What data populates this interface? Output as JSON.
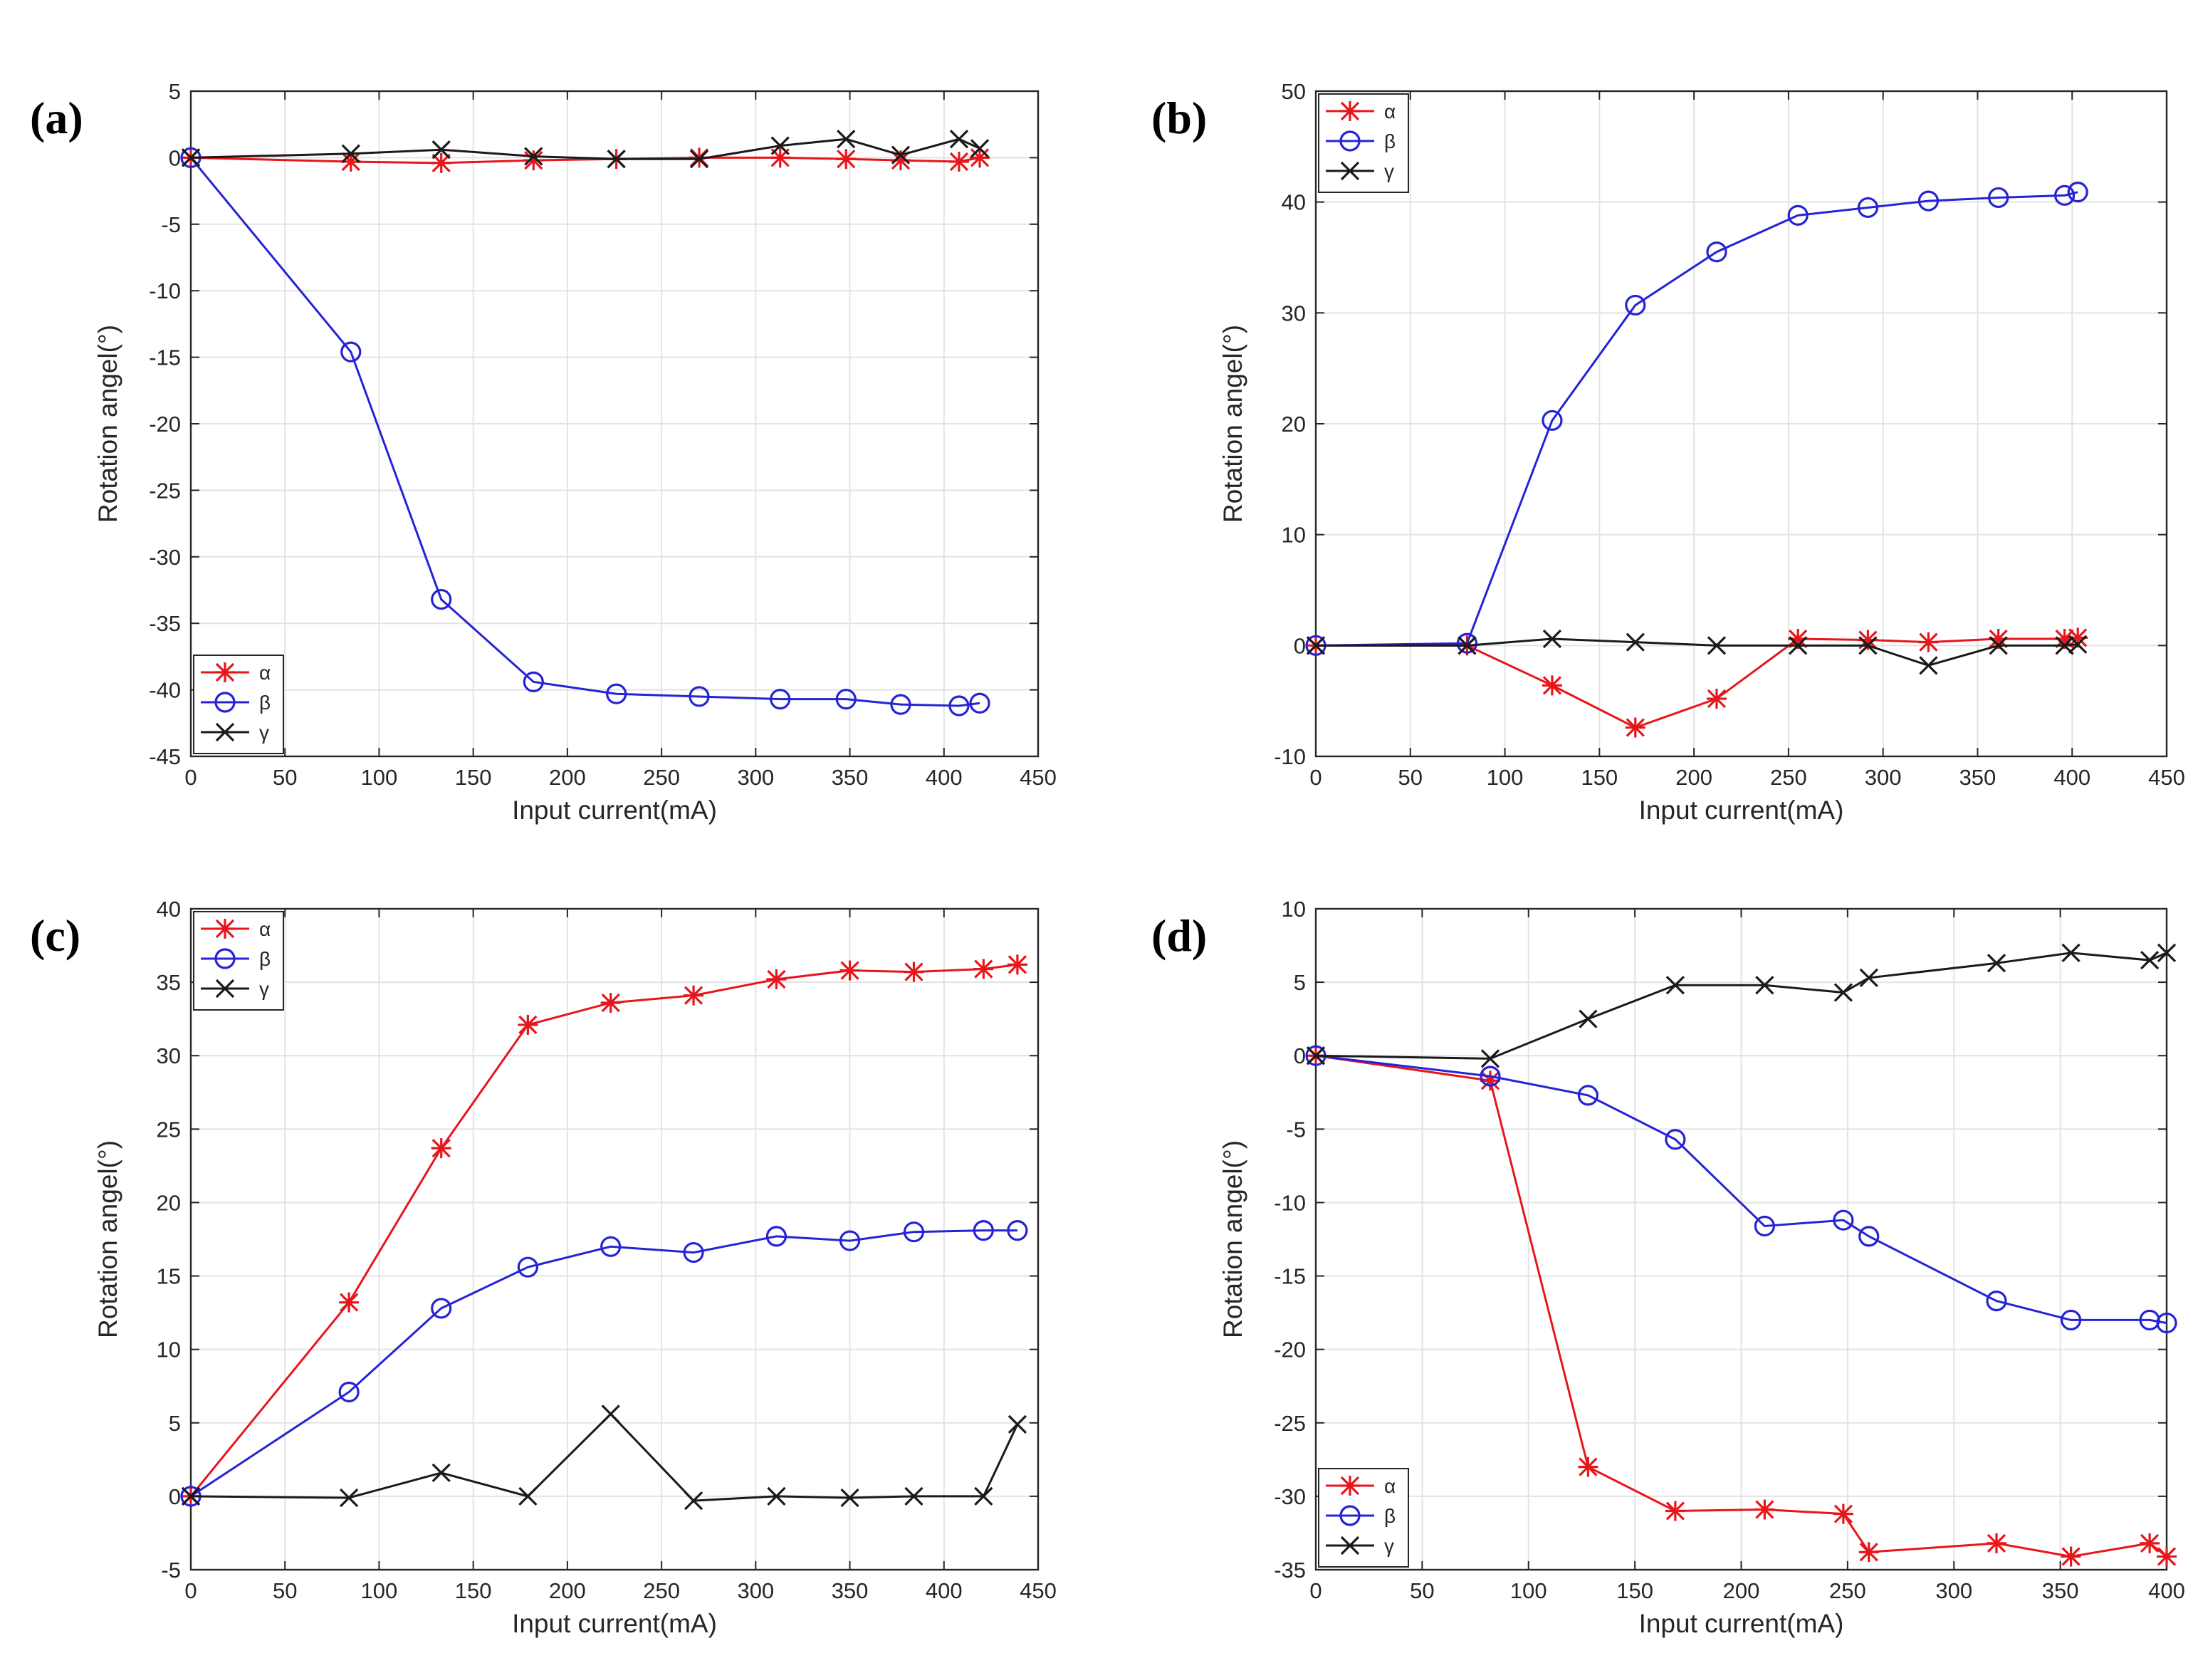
{
  "chart_data": [
    {
      "panel": "(a)",
      "type": "line",
      "xlabel": "Input current(mA)",
      "ylabel": "Rotation angel(°)",
      "xlim": [
        0,
        450
      ],
      "ylim": [
        -45,
        5
      ],
      "xticks": [
        0,
        50,
        100,
        150,
        200,
        250,
        300,
        350,
        400,
        450
      ],
      "yticks": [
        -45,
        -40,
        -35,
        -30,
        -25,
        -20,
        -15,
        -10,
        -5,
        0,
        5
      ],
      "grid": true,
      "legend_position": "bottom-left",
      "series": [
        {
          "name": "α",
          "color": "#e8151b",
          "marker": "star",
          "x": [
            0,
            85,
            133,
            182,
            226,
            270,
            313,
            348,
            377,
            408,
            419
          ],
          "y": [
            0,
            -0.3,
            -0.4,
            -0.2,
            -0.1,
            0,
            0,
            -0.1,
            -0.2,
            -0.3,
            0
          ]
        },
        {
          "name": "β",
          "color": "#2424d6",
          "marker": "circle",
          "x": [
            0,
            85,
            133,
            182,
            226,
            270,
            313,
            348,
            377,
            408,
            419
          ],
          "y": [
            0,
            -14.6,
            -33.2,
            -39.4,
            -40.3,
            -40.5,
            -40.7,
            -40.7,
            -41.1,
            -41.2,
            -41
          ]
        },
        {
          "name": "γ",
          "color": "#1a1a1a",
          "marker": "x",
          "x": [
            0,
            85,
            133,
            182,
            226,
            270,
            313,
            348,
            377,
            408,
            419
          ],
          "y": [
            0,
            0.3,
            0.6,
            0.1,
            -0.1,
            -0.1,
            0.9,
            1.4,
            0.2,
            1.4,
            0.7
          ]
        }
      ]
    },
    {
      "panel": "(b)",
      "type": "line",
      "xlabel": "Input current(mA)",
      "ylabel": "Rotation angel(°)",
      "xlim": [
        0,
        450
      ],
      "ylim": [
        -10,
        50
      ],
      "xticks": [
        0,
        50,
        100,
        150,
        200,
        250,
        300,
        350,
        400,
        450
      ],
      "yticks": [
        -10,
        0,
        10,
        20,
        30,
        40,
        50
      ],
      "grid": true,
      "legend_position": "top-left",
      "series": [
        {
          "name": "α",
          "color": "#e8151b",
          "marker": "star",
          "x": [
            0,
            80,
            125,
            169,
            212,
            255,
            292,
            324,
            361,
            396,
            403
          ],
          "y": [
            0,
            0,
            -3.6,
            -7.4,
            -4.8,
            0.6,
            0.5,
            0.3,
            0.6,
            0.6,
            0.7
          ]
        },
        {
          "name": "β",
          "color": "#2424d6",
          "marker": "circle",
          "x": [
            0,
            80,
            125,
            169,
            212,
            255,
            292,
            324,
            361,
            396,
            403
          ],
          "y": [
            0,
            0.2,
            20.3,
            30.7,
            35.5,
            38.8,
            39.5,
            40.1,
            40.4,
            40.6,
            40.9
          ]
        },
        {
          "name": "γ",
          "color": "#1a1a1a",
          "marker": "x",
          "x": [
            0,
            80,
            125,
            169,
            212,
            255,
            292,
            324,
            361,
            396,
            403
          ],
          "y": [
            0,
            0,
            0.6,
            0.3,
            0,
            0,
            0,
            -1.8,
            0,
            0,
            0.1
          ]
        }
      ]
    },
    {
      "panel": "(c)",
      "type": "line",
      "xlabel": "Input current(mA)",
      "ylabel": "Rotation angel(°)",
      "xlim": [
        0,
        450
      ],
      "ylim": [
        -5,
        40
      ],
      "xticks": [
        0,
        50,
        100,
        150,
        200,
        250,
        300,
        350,
        400,
        450
      ],
      "yticks": [
        -5,
        0,
        5,
        10,
        15,
        20,
        25,
        30,
        35,
        40
      ],
      "grid": true,
      "legend_position": "top-left",
      "series": [
        {
          "name": "α",
          "color": "#e8151b",
          "marker": "star",
          "x": [
            0,
            84,
            133,
            179,
            223,
            267,
            311,
            350,
            384,
            421,
            439
          ],
          "y": [
            0,
            13.2,
            23.7,
            32.1,
            33.6,
            34.1,
            35.2,
            35.8,
            35.7,
            35.9,
            36.2
          ]
        },
        {
          "name": "β",
          "color": "#2424d6",
          "marker": "circle",
          "x": [
            0,
            84,
            133,
            179,
            223,
            267,
            311,
            350,
            384,
            421,
            439
          ],
          "y": [
            0,
            7.1,
            12.8,
            15.6,
            17,
            16.6,
            17.7,
            17.4,
            18,
            18.1,
            18.1
          ]
        },
        {
          "name": "γ",
          "color": "#1a1a1a",
          "marker": "x",
          "x": [
            0,
            84,
            133,
            179,
            223,
            267,
            311,
            350,
            384,
            421,
            439
          ],
          "y": [
            0,
            -0.1,
            1.6,
            0,
            5.6,
            -0.3,
            0,
            -0.1,
            0,
            0,
            4.9
          ]
        }
      ]
    },
    {
      "panel": "(d)",
      "type": "line",
      "xlabel": "Input current(mA)",
      "ylabel": "Rotation angel(°)",
      "xlim": [
        0,
        400
      ],
      "ylim": [
        -35,
        10
      ],
      "xticks": [
        0,
        50,
        100,
        150,
        200,
        250,
        300,
        350,
        400
      ],
      "yticks": [
        -35,
        -30,
        -25,
        -20,
        -15,
        -10,
        -5,
        0,
        5,
        10
      ],
      "grid": true,
      "legend_position": "bottom-left",
      "series": [
        {
          "name": "α",
          "color": "#e8151b",
          "marker": "star",
          "x": [
            0,
            82,
            128,
            169,
            211,
            248,
            260,
            320,
            355,
            392,
            400
          ],
          "y": [
            0,
            -1.7,
            -28,
            -31,
            -30.9,
            -31.2,
            -33.8,
            -33.2,
            -34.1,
            -33.2,
            -34.1
          ]
        },
        {
          "name": "β",
          "color": "#2424d6",
          "marker": "circle",
          "x": [
            0,
            82,
            128,
            169,
            211,
            248,
            260,
            320,
            355,
            392,
            400
          ],
          "y": [
            0,
            -1.4,
            -2.7,
            -5.7,
            -11.6,
            -11.2,
            -12.3,
            -16.7,
            -18,
            -18,
            -18.2
          ]
        },
        {
          "name": "γ",
          "color": "#1a1a1a",
          "marker": "x",
          "x": [
            0,
            82,
            128,
            169,
            211,
            248,
            260,
            320,
            355,
            392,
            400
          ],
          "y": [
            0,
            -0.2,
            2.5,
            4.8,
            4.8,
            4.3,
            5.3,
            6.3,
            7,
            6.5,
            7
          ]
        }
      ]
    }
  ]
}
